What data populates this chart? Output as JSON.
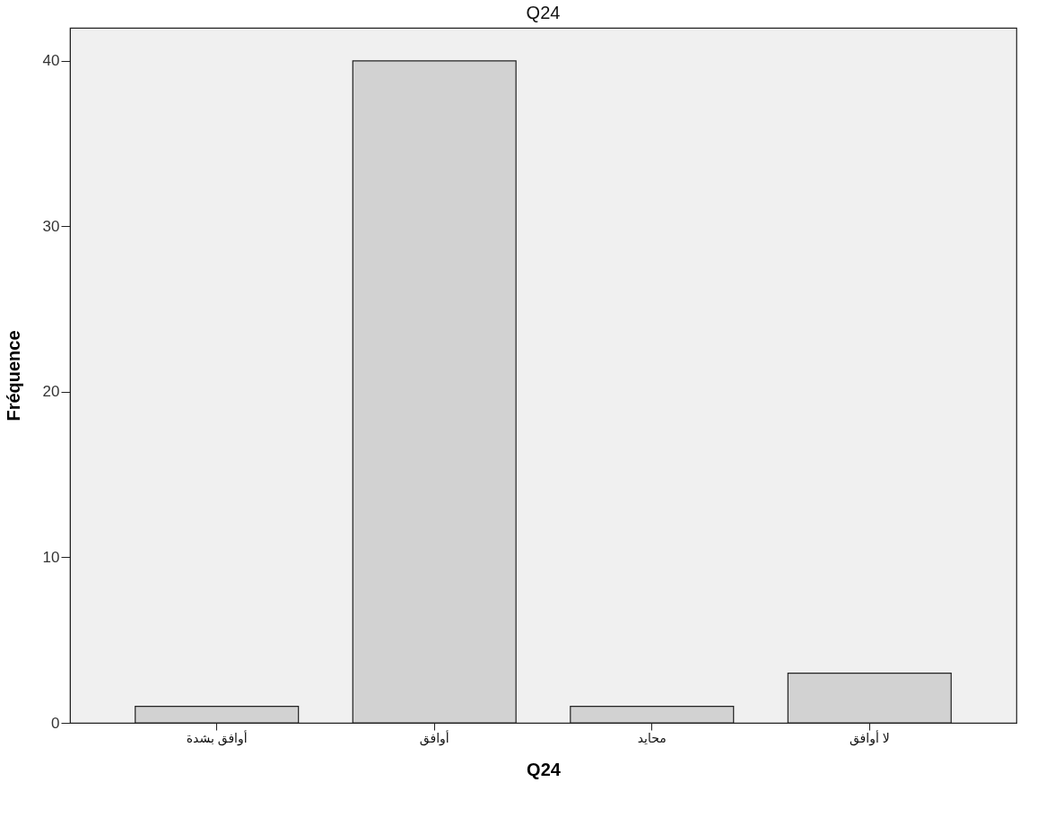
{
  "chart_data": {
    "type": "bar",
    "title": "Q24",
    "xlabel": "Q24",
    "ylabel": "Fréquence",
    "categories": [
      "أوافق بشدة",
      "أوافق",
      "محايد",
      "لا أوافق"
    ],
    "values": [
      1,
      40,
      1,
      3
    ],
    "color": "#d2d2d2",
    "ylim": [
      0,
      42
    ],
    "yticks": [
      0,
      10,
      20,
      30,
      40
    ],
    "grid": false
  }
}
